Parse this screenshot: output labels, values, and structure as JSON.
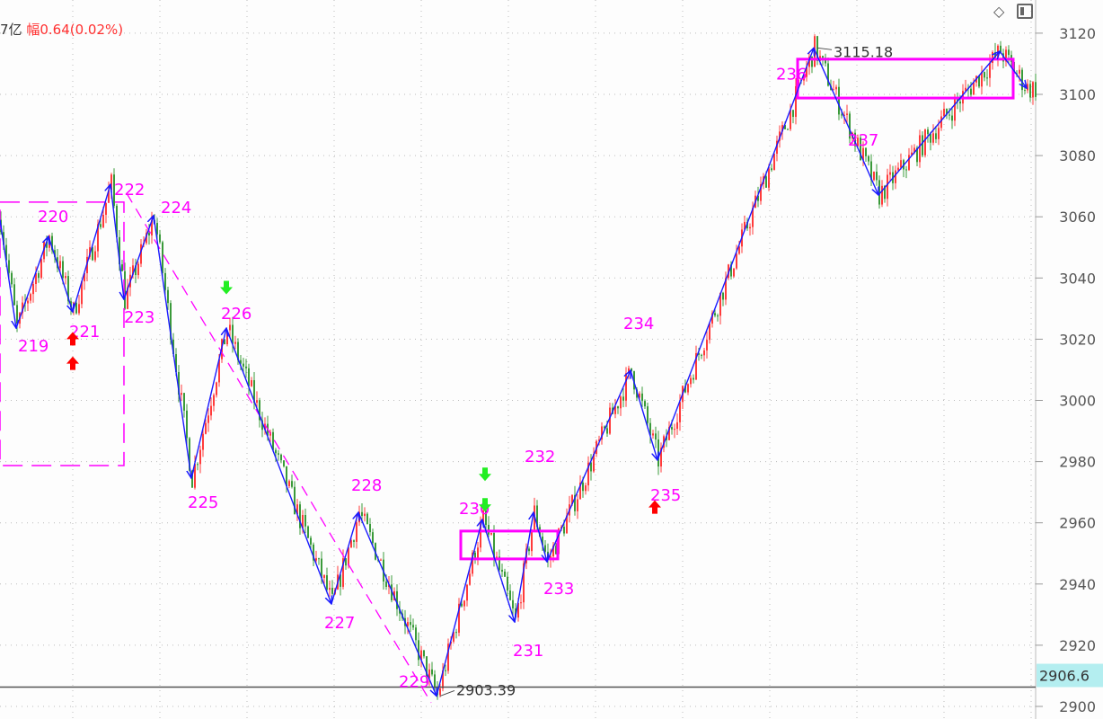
{
  "header": {
    "amount_fragment": "7亿",
    "change_label": "幅",
    "change_value": "0.64(0.02%)"
  },
  "toolbar": {
    "icons": [
      "diamond-icon",
      "panel-toggle-icon"
    ]
  },
  "colors": {
    "up": "#ff3b3b",
    "down": "#3a9a3a",
    "zigzag": "#1a1aff",
    "annotation": "#ff00ff",
    "price_badge": "#b4eef0",
    "up_arrow": "#ff0000",
    "down_arrow": "#22ee22"
  },
  "chart_data": {
    "type": "candlestick",
    "title": "",
    "ylim": [
      2897,
      3130
    ],
    "y_ticks": [
      2900,
      2920,
      2940,
      2960,
      2980,
      3000,
      3020,
      3040,
      3060,
      3080,
      3100,
      3120
    ],
    "grid": true,
    "current_price": "2906.6",
    "zigzag": [
      {
        "bar": 0,
        "value": 3059,
        "label": ""
      },
      {
        "bar": 6,
        "value": 3023.6,
        "label": "219"
      },
      {
        "bar": 18,
        "value": 3053.6,
        "label": "220"
      },
      {
        "bar": 27,
        "value": 3028.9,
        "label": "221"
      },
      {
        "bar": 41,
        "value": 3070.6,
        "label": "222"
      },
      {
        "bar": 46,
        "value": 3033.0,
        "label": "223"
      },
      {
        "bar": 57,
        "value": 3060.4,
        "label": "224"
      },
      {
        "bar": 71,
        "value": 2974.6,
        "label": "225"
      },
      {
        "bar": 84,
        "value": 3023.6,
        "label": "226"
      },
      {
        "bar": 123,
        "value": 2933.5,
        "label": "227"
      },
      {
        "bar": 133,
        "value": 2963.4,
        "label": "228"
      },
      {
        "bar": 162,
        "value": 2903.39,
        "label": "229"
      },
      {
        "bar": 179,
        "value": 2961.1,
        "label": "230"
      },
      {
        "bar": 191,
        "value": 2927.6,
        "label": "231"
      },
      {
        "bar": 198,
        "value": 2963.4,
        "label": "232"
      },
      {
        "bar": 203,
        "value": 2947.3,
        "label": "233"
      },
      {
        "bar": 234,
        "value": 3009.8,
        "label": "234"
      },
      {
        "bar": 244,
        "value": 2980.5,
        "label": "235"
      },
      {
        "bar": 302,
        "value": 3115.18,
        "label": "236"
      },
      {
        "bar": 326,
        "value": 3067.1,
        "label": "237"
      },
      {
        "bar": 371,
        "value": 3114.1,
        "label": ""
      },
      {
        "bar": 381,
        "value": 3102.0,
        "label": ""
      }
    ],
    "extreme_labels": [
      {
        "text": "3115.18",
        "value": 3115.18
      },
      {
        "text": "2903.39",
        "value": 2903.39
      }
    ],
    "boxes": [
      {
        "from_bar": 0,
        "to_bar": 46,
        "top": 3064.8,
        "bottom": 2978.7,
        "style": "dashed"
      },
      {
        "from_bar": 171,
        "to_bar": 207,
        "top": 2957.3,
        "bottom": 2948.2,
        "style": "solid"
      },
      {
        "from_bar": 296,
        "to_bar": 376,
        "top": 3111.5,
        "bottom": 3098.8,
        "style": "solid"
      }
    ],
    "trendline": {
      "from_bar": 47,
      "from_value": 3067.7,
      "to_bar": 160,
      "to_value": 2901.2,
      "style": "dashed"
    },
    "signals": [
      {
        "type": "buy",
        "bar": 27,
        "value": 3020
      },
      {
        "type": "buy",
        "bar": 27,
        "value": 3012
      },
      {
        "type": "buy",
        "bar": 243,
        "value": 2965
      },
      {
        "type": "sell",
        "bar": 84,
        "value": 3037
      },
      {
        "type": "sell",
        "bar": 180,
        "value": 2976
      },
      {
        "type": "sell",
        "bar": 180,
        "value": 2966
      }
    ]
  }
}
